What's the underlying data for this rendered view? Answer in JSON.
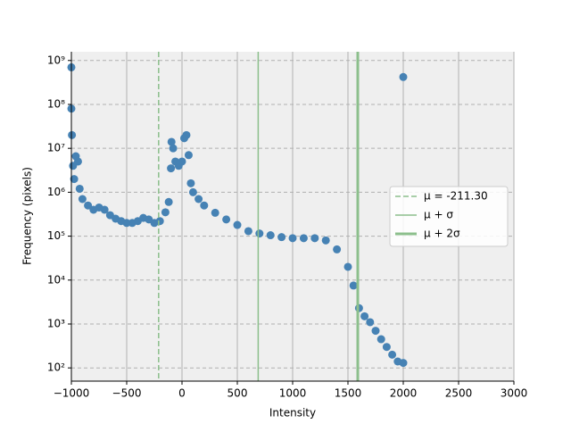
{
  "chart_data": {
    "type": "scatter",
    "xlabel": "Intensity",
    "ylabel": "Frequency (pixels)",
    "xlim": [
      -1000,
      3000
    ],
    "xticks": [
      {
        "value": -1000,
        "label": "−1000"
      },
      {
        "value": -500,
        "label": "−500"
      },
      0,
      500,
      1000,
      1500,
      2000,
      2500,
      3000
    ],
    "ylim": [
      50,
      1580000000
    ],
    "ylog": true,
    "yticks": [
      {
        "value": 100,
        "label": "10²"
      },
      {
        "value": 1000,
        "label": "10³"
      },
      {
        "value": 10000,
        "label": "10⁴"
      },
      {
        "value": 100000,
        "label": "10⁵"
      },
      {
        "value": 1000000,
        "label": "10⁶"
      },
      {
        "value": 10000000,
        "label": "10⁷"
      },
      {
        "value": 100000000,
        "label": "10⁸"
      },
      {
        "value": 1000000000,
        "label": "10⁹"
      }
    ],
    "grid": true,
    "legend": "center right",
    "series": [
      {
        "color": "#4682b4",
        "x": [
          -1000,
          2000,
          -1000,
          -995,
          -985,
          -975,
          -960,
          -940,
          -925,
          -900,
          -850,
          -800,
          -750,
          -700,
          -650,
          -600,
          -550,
          -500,
          -450,
          -400,
          -350,
          -300,
          -250,
          -200,
          -150,
          -120,
          -100,
          -95,
          -80,
          -60,
          -30,
          0,
          20,
          40,
          60,
          80,
          100,
          150,
          200,
          300,
          400,
          500,
          600,
          700,
          800,
          900,
          1000,
          1100,
          1200,
          1300,
          1400,
          1500,
          1550,
          1600,
          1650,
          1700,
          1750,
          1800,
          1850,
          1900,
          1950,
          2000
        ],
        "values": [
          700000000,
          420000000,
          80000000,
          20000000,
          4000000,
          2000000,
          6600000,
          5000000,
          1200000,
          700000,
          500000,
          400000,
          450000,
          400000,
          300000,
          250000,
          220000,
          200000,
          200000,
          220000,
          260000,
          240000,
          200000,
          220000,
          350000,
          600000,
          3500000,
          14000000,
          10000000,
          5000000,
          4000000,
          5000000,
          17000000,
          20000000,
          7000000,
          1600000,
          1000000,
          700000,
          500000,
          340000,
          240000,
          180000,
          130000,
          115000,
          105000,
          95000,
          90000,
          90000,
          90000,
          80000,
          50000,
          20000,
          7500,
          2300,
          1500,
          1100,
          700,
          450,
          300,
          200,
          140,
          130
        ]
      }
    ],
    "vlines": [
      {
        "name": "μ = -211.30",
        "x": -211.3,
        "style": "dashed",
        "width": 1.5,
        "color": "#8cbf8c"
      },
      {
        "name": "μ + σ",
        "x": 688.7,
        "style": "solid",
        "width": 1.5,
        "color": "#8cbf8c"
      },
      {
        "name": "μ + 2σ",
        "x": 1588.7,
        "style": "solid",
        "width": 3,
        "color": "#8cbf8c"
      }
    ]
  }
}
